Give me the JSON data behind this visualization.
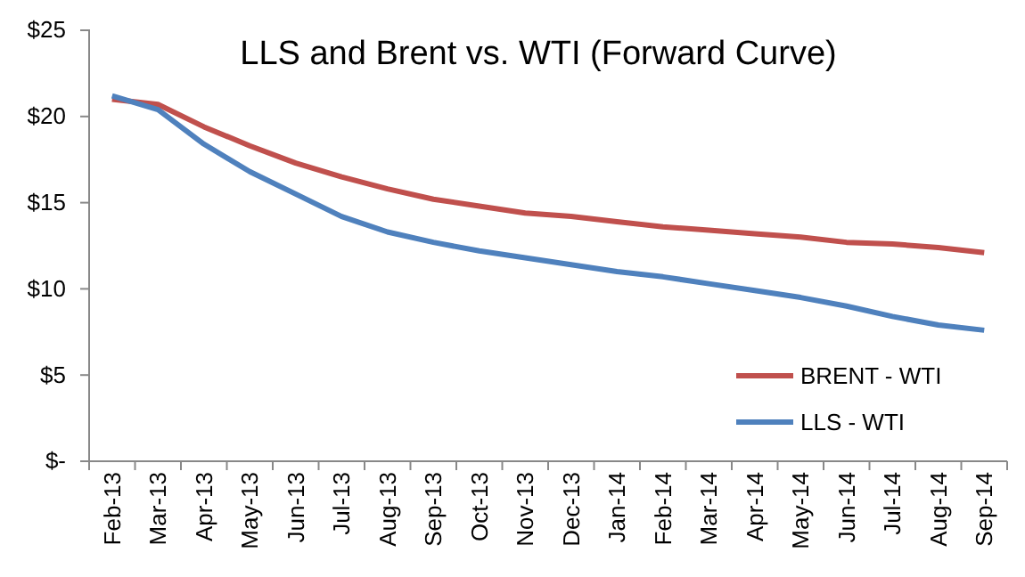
{
  "chart_data": {
    "type": "line",
    "title": "LLS and Brent vs. WTI (Forward Curve)",
    "categories": [
      "Feb-13",
      "Mar-13",
      "Apr-13",
      "May-13",
      "Jun-13",
      "Jul-13",
      "Aug-13",
      "Sep-13",
      "Oct-13",
      "Nov-13",
      "Dec-13",
      "Jan-14",
      "Feb-14",
      "Mar-14",
      "Apr-14",
      "May-14",
      "Jun-14",
      "Jul-14",
      "Aug-14",
      "Sep-14"
    ],
    "series": [
      {
        "name": "BRENT - WTI",
        "color": "#c0504d",
        "values": [
          21.0,
          20.7,
          19.4,
          18.3,
          17.3,
          16.5,
          15.8,
          15.2,
          14.8,
          14.4,
          14.2,
          13.9,
          13.6,
          13.4,
          13.2,
          13.0,
          12.7,
          12.6,
          12.4,
          12.1
        ]
      },
      {
        "name": "LLS - WTI",
        "color": "#4f81bd",
        "values": [
          21.2,
          20.4,
          18.4,
          16.8,
          15.5,
          14.2,
          13.3,
          12.7,
          12.2,
          11.8,
          11.4,
          11.0,
          10.7,
          10.3,
          9.9,
          9.5,
          9.0,
          8.4,
          7.9,
          7.6
        ]
      }
    ],
    "ylim": [
      0,
      25
    ],
    "yticks": [
      {
        "value": 0,
        "label": "$-"
      },
      {
        "value": 5,
        "label": "$5"
      },
      {
        "value": 10,
        "label": "$10"
      },
      {
        "value": 15,
        "label": "$15"
      },
      {
        "value": 20,
        "label": "$20"
      },
      {
        "value": 25,
        "label": "$25"
      }
    ],
    "grid": false,
    "legend": "bottom right",
    "marker": "none",
    "line_style": "solid"
  }
}
